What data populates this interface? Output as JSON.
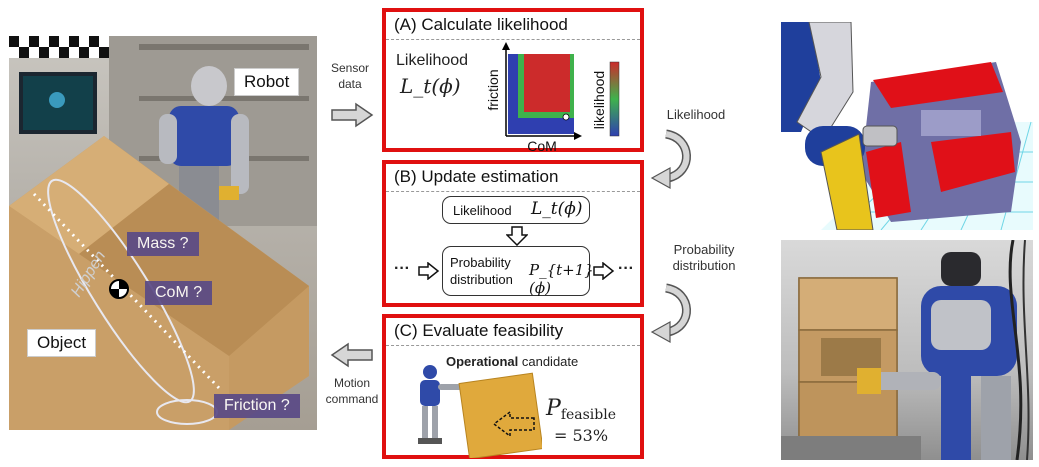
{
  "left_photo": {
    "robot_label": "Robot",
    "object_label": "Object",
    "box_brand": "Hippen",
    "tags": {
      "mass": "Mass ?",
      "com": "CoM ?",
      "friction": "Friction ?"
    }
  },
  "arrows": {
    "sensor_line1": "Sensor",
    "sensor_line2": "data",
    "motion_line1": "Motion",
    "motion_line2": "command",
    "likelihood": "Likelihood",
    "probability_line1": "Probability",
    "probability_line2": "distribution"
  },
  "panel_a": {
    "title": "(A) Calculate likelihood",
    "likelihood_word": "Likelihood",
    "likelihood_symbol": "L_t(ϕ)",
    "y_axis_label": "friction",
    "x_axis_label": "CoM",
    "colorbar_label": "likelihood",
    "colors": {
      "high": "#cc2b2b",
      "mid": "#3fb24c",
      "low": "#2f3fb0",
      "frame": "#e01010"
    }
  },
  "panel_b": {
    "title": "(B) Update estimation",
    "likelihood_word": "Likelihood",
    "likelihood_symbol": "L_t(ϕ)",
    "prob_line1": "Probability",
    "prob_line2": "distribution",
    "prob_symbol": "P_{t+1}(ϕ)",
    "ellipsis": "···"
  },
  "panel_c": {
    "title": "(C) Evaluate feasibility",
    "candidate_bold": "Operational",
    "candidate_rest": " candidate",
    "p_feasible_symbol": "P",
    "p_feasible_sub": "feasible",
    "p_feasible_value": "= 53%"
  }
}
